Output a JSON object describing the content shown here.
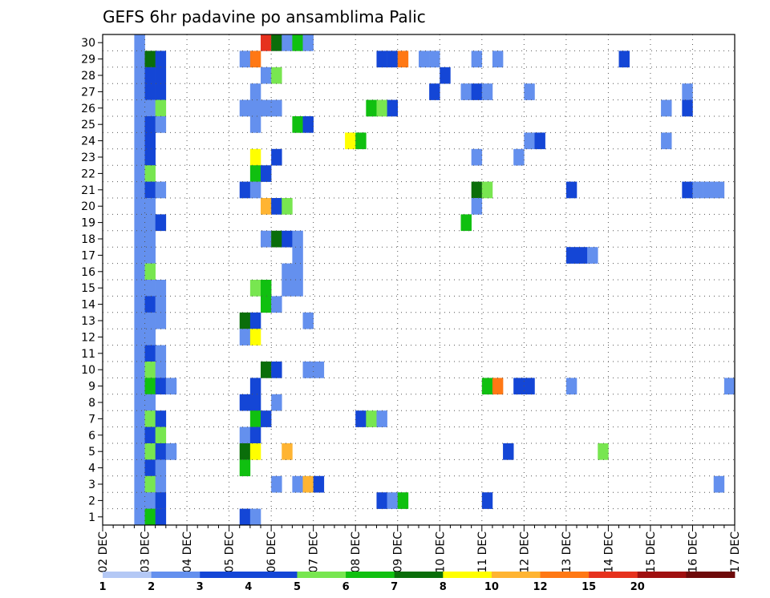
{
  "chart_data": {
    "type": "heatmap",
    "title": "GEFS 6hr padavine po ansamblima Palic",
    "xlabel": "",
    "ylabel": "",
    "x_ticks": [
      "02 DEC",
      "03 DEC",
      "04 DEC",
      "05 DEC",
      "06 DEC",
      "07 DEC",
      "08 DEC",
      "09 DEC",
      "10 DEC",
      "11 DEC",
      "12 DEC",
      "13 DEC",
      "14 DEC",
      "15 DEC",
      "16 DEC",
      "17 DEC"
    ],
    "y_ticks": [
      "1",
      "2",
      "3",
      "4",
      "5",
      "6",
      "7",
      "8",
      "9",
      "10",
      "11",
      "12",
      "13",
      "14",
      "15",
      "16",
      "17",
      "18",
      "19",
      "20",
      "21",
      "22",
      "23",
      "24",
      "25",
      "26",
      "27",
      "28",
      "29",
      "30"
    ],
    "xlim": [
      "02 DEC 00Z",
      "17 DEC 00Z"
    ],
    "ylim": [
      0,
      30
    ],
    "grid": true,
    "x_unit_note": "x values are days since 02 DEC 00Z, 6-hour steps",
    "colorbar": {
      "labels": [
        "1",
        "2",
        "3",
        "4",
        "5",
        "6",
        "7",
        "8",
        "10",
        "12",
        "15",
        "20"
      ],
      "colors": [
        "#b4c8f5",
        "#6490ee",
        "#1446d6",
        "#1446d6",
        "#78e650",
        "#10c010",
        "#0a6e0a",
        "#ffff00",
        "#ffb432",
        "#ff7814",
        "#e6321e",
        "#a01010",
        "#6e0a0a"
      ]
    },
    "cells": [
      [
        0.75,
        30,
        1
      ],
      [
        0.75,
        29,
        1
      ],
      [
        0.75,
        28,
        1
      ],
      [
        0.75,
        27,
        1
      ],
      [
        0.75,
        26,
        1
      ],
      [
        0.75,
        25,
        1
      ],
      [
        0.75,
        24,
        1
      ],
      [
        0.75,
        23,
        1
      ],
      [
        0.75,
        22,
        1
      ],
      [
        0.75,
        21,
        1
      ],
      [
        0.75,
        20,
        1
      ],
      [
        0.75,
        19,
        1
      ],
      [
        0.75,
        18,
        1
      ],
      [
        0.75,
        17,
        1
      ],
      [
        0.75,
        16,
        1
      ],
      [
        0.75,
        15,
        1
      ],
      [
        0.75,
        14,
        1
      ],
      [
        0.75,
        13,
        1
      ],
      [
        0.75,
        12,
        1
      ],
      [
        0.75,
        11,
        1
      ],
      [
        0.75,
        10,
        1
      ],
      [
        0.75,
        9,
        1
      ],
      [
        0.75,
        8,
        1
      ],
      [
        0.75,
        7,
        1
      ],
      [
        0.75,
        6,
        1
      ],
      [
        0.75,
        5,
        1
      ],
      [
        0.75,
        4,
        1
      ],
      [
        0.75,
        3,
        1
      ],
      [
        0.75,
        2,
        1
      ],
      [
        0.75,
        1,
        1
      ],
      [
        1.0,
        29,
        6
      ],
      [
        1.25,
        29,
        2
      ],
      [
        1.0,
        28,
        2
      ],
      [
        1.25,
        28,
        2
      ],
      [
        1.0,
        27,
        3
      ],
      [
        1.25,
        27,
        3
      ],
      [
        1.0,
        26,
        1
      ],
      [
        1.25,
        26,
        4
      ],
      [
        1.0,
        25,
        2
      ],
      [
        1.25,
        25,
        1
      ],
      [
        1.0,
        24,
        2
      ],
      [
        1.0,
        23,
        2
      ],
      [
        1.0,
        22,
        4
      ],
      [
        1.0,
        21,
        3
      ],
      [
        1.25,
        21,
        1
      ],
      [
        1.0,
        20,
        1
      ],
      [
        1.0,
        19,
        1
      ],
      [
        1.25,
        19,
        2
      ],
      [
        1.0,
        18,
        1
      ],
      [
        1.0,
        17,
        1
      ],
      [
        1.0,
        16,
        4
      ],
      [
        1.0,
        15,
        1
      ],
      [
        1.25,
        15,
        1
      ],
      [
        1.0,
        14,
        2
      ],
      [
        1.25,
        14,
        1
      ],
      [
        1.0,
        13,
        1
      ],
      [
        1.25,
        13,
        1
      ],
      [
        1.0,
        12,
        1
      ],
      [
        1.0,
        11,
        2
      ],
      [
        1.25,
        11,
        1
      ],
      [
        1.0,
        10,
        4
      ],
      [
        1.25,
        10,
        1
      ],
      [
        1.0,
        9,
        5
      ],
      [
        1.25,
        9,
        3
      ],
      [
        1.5,
        9,
        1
      ],
      [
        1.0,
        8,
        1
      ],
      [
        1.0,
        7,
        4
      ],
      [
        1.25,
        7,
        2
      ],
      [
        1.0,
        6,
        3
      ],
      [
        1.25,
        6,
        4
      ],
      [
        1.0,
        5,
        4
      ],
      [
        1.25,
        5,
        2
      ],
      [
        1.5,
        5,
        1
      ],
      [
        1.0,
        4,
        3
      ],
      [
        1.25,
        4,
        1
      ],
      [
        1.0,
        3,
        4
      ],
      [
        1.25,
        3,
        1
      ],
      [
        1.0,
        2,
        1
      ],
      [
        1.25,
        2,
        3
      ],
      [
        1.0,
        1,
        5
      ],
      [
        1.25,
        1,
        2
      ],
      [
        3.75,
        30,
        10
      ],
      [
        4.0,
        30,
        6
      ],
      [
        4.25,
        30,
        1
      ],
      [
        4.5,
        30,
        5
      ],
      [
        4.75,
        30,
        1
      ],
      [
        3.25,
        29,
        1
      ],
      [
        3.5,
        29,
        9
      ],
      [
        3.75,
        28,
        1
      ],
      [
        4.0,
        28,
        4
      ],
      [
        3.5,
        27,
        1
      ],
      [
        3.25,
        26,
        1
      ],
      [
        3.5,
        26,
        1
      ],
      [
        3.75,
        26,
        1
      ],
      [
        4.0,
        26,
        1
      ],
      [
        3.5,
        25,
        1
      ],
      [
        4.5,
        25,
        5
      ],
      [
        4.75,
        25,
        3
      ],
      [
        5.75,
        24,
        7
      ],
      [
        6.0,
        24,
        5
      ],
      [
        3.5,
        23,
        7
      ],
      [
        4.0,
        23,
        2
      ],
      [
        3.5,
        22,
        5
      ],
      [
        3.75,
        22,
        2
      ],
      [
        3.25,
        21,
        3
      ],
      [
        3.5,
        21,
        1
      ],
      [
        3.75,
        20,
        8
      ],
      [
        4.0,
        20,
        3
      ],
      [
        4.25,
        20,
        4
      ],
      [
        3.75,
        18,
        1
      ],
      [
        4.0,
        18,
        6
      ],
      [
        4.25,
        18,
        2
      ],
      [
        4.5,
        18,
        1
      ],
      [
        4.5,
        17,
        1
      ],
      [
        4.25,
        16,
        1
      ],
      [
        4.5,
        16,
        1
      ],
      [
        3.5,
        15,
        4
      ],
      [
        3.75,
        15,
        5
      ],
      [
        4.25,
        15,
        1
      ],
      [
        4.5,
        15,
        1
      ],
      [
        3.75,
        14,
        5
      ],
      [
        4.0,
        14,
        1
      ],
      [
        3.25,
        13,
        6
      ],
      [
        3.5,
        13,
        2
      ],
      [
        4.75,
        13,
        1
      ],
      [
        3.25,
        12,
        1
      ],
      [
        3.5,
        12,
        7
      ],
      [
        3.75,
        10,
        6
      ],
      [
        4.0,
        10,
        2
      ],
      [
        4.75,
        10,
        1
      ],
      [
        5.0,
        10,
        1
      ],
      [
        3.5,
        9,
        3
      ],
      [
        3.25,
        8,
        2
      ],
      [
        3.5,
        8,
        2
      ],
      [
        4.0,
        8,
        1
      ],
      [
        3.5,
        7,
        5
      ],
      [
        3.75,
        7,
        2
      ],
      [
        3.25,
        6,
        1
      ],
      [
        3.5,
        6,
        2
      ],
      [
        3.25,
        5,
        6
      ],
      [
        3.5,
        5,
        7
      ],
      [
        4.25,
        5,
        8
      ],
      [
        3.25,
        4,
        5
      ],
      [
        4.0,
        3,
        1
      ],
      [
        4.5,
        3,
        1
      ],
      [
        4.75,
        3,
        8
      ],
      [
        5.0,
        3,
        3
      ],
      [
        3.25,
        1,
        2
      ],
      [
        3.5,
        1,
        1
      ],
      [
        6.5,
        29,
        2
      ],
      [
        6.75,
        29,
        3
      ],
      [
        7.0,
        29,
        9
      ],
      [
        7.5,
        29,
        1
      ],
      [
        7.75,
        29,
        1
      ],
      [
        8.75,
        29,
        1
      ],
      [
        9.25,
        29,
        1
      ],
      [
        12.25,
        29,
        2
      ],
      [
        8.0,
        28,
        2
      ],
      [
        7.75,
        27,
        2
      ],
      [
        8.5,
        27,
        1
      ],
      [
        8.75,
        27,
        2
      ],
      [
        9.0,
        27,
        1
      ],
      [
        10.0,
        27,
        1
      ],
      [
        13.75,
        27,
        1
      ],
      [
        6.25,
        26,
        5
      ],
      [
        6.5,
        26,
        4
      ],
      [
        6.75,
        26,
        2
      ],
      [
        13.25,
        26,
        1
      ],
      [
        13.75,
        26,
        3
      ],
      [
        10.0,
        24,
        1
      ],
      [
        10.25,
        24,
        2
      ],
      [
        13.25,
        24,
        1
      ],
      [
        8.75,
        23,
        1
      ],
      [
        9.75,
        23,
        1
      ],
      [
        8.75,
        21,
        6
      ],
      [
        9.0,
        21,
        4
      ],
      [
        11.0,
        21,
        2
      ],
      [
        13.75,
        21,
        2
      ],
      [
        14.0,
        21,
        1
      ],
      [
        14.25,
        21,
        1
      ],
      [
        14.5,
        21,
        1
      ],
      [
        8.75,
        20,
        1
      ],
      [
        8.5,
        19,
        5
      ],
      [
        11.0,
        17,
        2
      ],
      [
        11.25,
        17,
        3
      ],
      [
        11.5,
        17,
        1
      ],
      [
        9.0,
        9,
        5
      ],
      [
        9.25,
        9,
        9
      ],
      [
        9.75,
        9,
        3
      ],
      [
        10.0,
        9,
        3
      ],
      [
        11.0,
        9,
        1
      ],
      [
        14.75,
        9,
        1
      ],
      [
        6.0,
        7,
        2
      ],
      [
        6.25,
        7,
        4
      ],
      [
        6.5,
        7,
        1
      ],
      [
        9.5,
        5,
        2
      ],
      [
        11.75,
        5,
        4
      ],
      [
        14.5,
        3,
        1
      ],
      [
        6.5,
        2,
        2
      ],
      [
        6.75,
        2,
        1
      ],
      [
        7.0,
        2,
        5
      ],
      [
        9.0,
        2,
        2
      ]
    ]
  }
}
